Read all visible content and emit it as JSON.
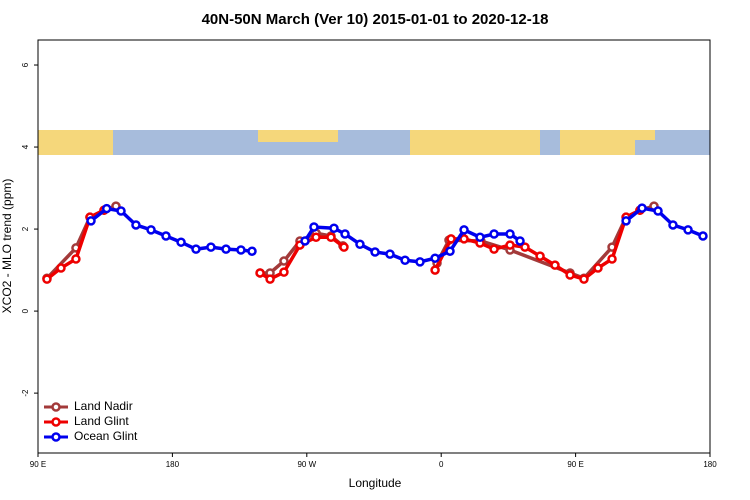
{
  "chart_data": {
    "type": "line",
    "title": "40N-50N March (Ver 10)   2015-01-01 to 2020-12-18",
    "x_label": "Longitude",
    "y_label": "XCO2 - MLO trend (ppm)",
    "xlim": [
      90,
      540
    ],
    "xticks": [
      {
        "value": 90,
        "label": "90 E"
      },
      {
        "value": 180,
        "label": "180"
      },
      {
        "value": 270,
        "label": "90 W"
      },
      {
        "value": 360,
        "label": "0"
      },
      {
        "value": 450,
        "label": "90 E"
      },
      {
        "value": 540,
        "label": "180"
      }
    ],
    "ylim": [
      -3.46,
      6.61
    ],
    "yticks": [
      -2,
      0,
      2,
      4,
      6
    ],
    "legend": "bottom-left",
    "series": [
      {
        "name": "Land Nadir",
        "color": "#a33a3a",
        "x": [
          96,
          115.4,
          124.8,
          134.2,
          142.2,
          null,
          238.7,
          245.4,
          254.7,
          265.4,
          276.2,
          286.2,
          294.2,
          null,
          357.2,
          365.2,
          386.6,
          406.1,
          446.3,
          455.6,
          474.4,
          483.8,
          493.1,
          502.5
        ],
        "values": [
          0.8,
          1.54,
          2.29,
          2.46,
          2.56,
          null,
          0.93,
          0.93,
          1.22,
          1.71,
          1.9,
          1.83,
          1.59,
          null,
          1.17,
          1.73,
          1.71,
          1.49,
          0.93,
          0.8,
          1.56,
          2.29,
          2.46,
          2.56
        ]
      },
      {
        "name": "Land Glint",
        "color": "#ee0000",
        "x": [
          96,
          105.4,
          115.4,
          124.8,
          134.2,
          null,
          238.7,
          245.4,
          254.7,
          265.4,
          276.2,
          286.2,
          294.9,
          null,
          355.9,
          366.6,
          375.3,
          386,
          395.4,
          406.1,
          416.1,
          426.2,
          436.2,
          446.3,
          455.6,
          465,
          474.4,
          483.8,
          493.1
        ],
        "values": [
          0.78,
          1.05,
          1.27,
          2.29,
          2.46,
          null,
          0.93,
          0.78,
          0.95,
          1.61,
          1.8,
          1.8,
          1.56,
          null,
          1.0,
          1.76,
          1.76,
          1.66,
          1.51,
          1.61,
          1.56,
          1.34,
          1.12,
          0.88,
          0.78,
          1.05,
          1.27,
          2.29,
          2.46
        ]
      },
      {
        "name": "Ocean Glint",
        "color": "#0000ee",
        "x": [
          125.5,
          136,
          145.6,
          155.6,
          165.7,
          175.7,
          185.8,
          195.8,
          205.8,
          215.9,
          225.9,
          233.3,
          null,
          268.8,
          274.8,
          288.2,
          295.6,
          305.6,
          315.7,
          325.7,
          335.8,
          345.8,
          355.9,
          365.9,
          375.3,
          386,
          395.4,
          406.1,
          412.8,
          null,
          483.8,
          494.5,
          505.2,
          515.2,
          525.3,
          535.3
        ],
        "values": [
          2.2,
          2.5,
          2.44,
          2.1,
          1.98,
          1.83,
          1.68,
          1.51,
          1.56,
          1.51,
          1.49,
          1.46,
          null,
          1.71,
          2.05,
          2.02,
          1.88,
          1.63,
          1.44,
          1.39,
          1.24,
          1.2,
          1.29,
          1.46,
          1.98,
          1.8,
          1.88,
          1.88,
          1.71,
          null,
          2.2,
          2.51,
          2.44,
          2.1,
          1.98,
          1.83
        ]
      }
    ]
  }
}
